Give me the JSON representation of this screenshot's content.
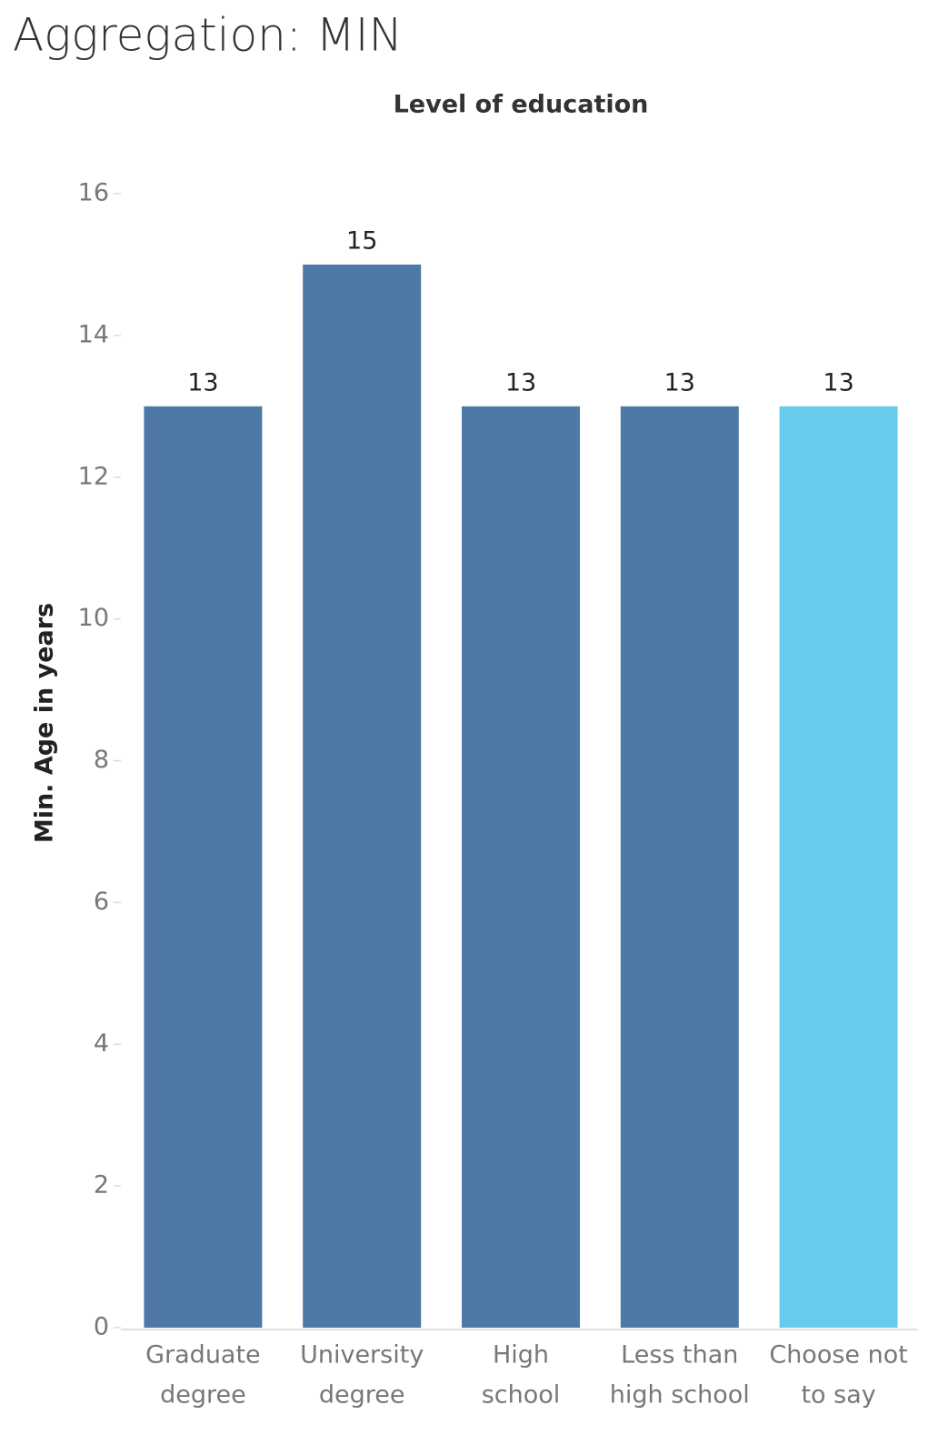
{
  "chart_data": {
    "type": "bar",
    "title": "Aggregation: MIN",
    "subtitle": "Level of education",
    "y_label": "Min. Age in years",
    "categories": [
      [
        "Graduate",
        "degree"
      ],
      [
        "University",
        "degree"
      ],
      [
        "High",
        "school"
      ],
      [
        "Less than",
        "high school"
      ],
      [
        "Choose not",
        "to say"
      ]
    ],
    "values": [
      13,
      15,
      13,
      13,
      13
    ],
    "colors": [
      "#4e79a7",
      "#4e79a7",
      "#4e79a7",
      "#4e79a7",
      "#67cbec"
    ],
    "ylim": [
      0,
      16
    ],
    "yticks": [
      0,
      2,
      4,
      6,
      8,
      10,
      12,
      14,
      16
    ],
    "grid": false
  }
}
